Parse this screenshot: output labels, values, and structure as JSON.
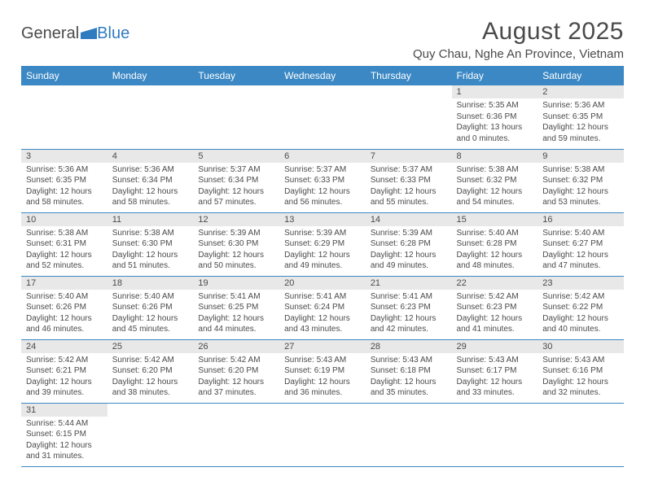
{
  "logo": {
    "text1": "General",
    "text2": "Blue"
  },
  "title": "August 2025",
  "location": "Quy Chau, Nghe An Province, Vietnam",
  "colors": {
    "header_bg": "#3b88c4",
    "header_text": "#ffffff",
    "daynum_bg": "#e8e8e8",
    "border": "#3b88c4",
    "text": "#4a4a4a",
    "logo_blue": "#2f7bbf",
    "background": "#ffffff"
  },
  "fonts": {
    "title_size": 30,
    "location_size": 15,
    "dayhead_size": 12,
    "body_size": 10
  },
  "day_headers": [
    "Sunday",
    "Monday",
    "Tuesday",
    "Wednesday",
    "Thursday",
    "Friday",
    "Saturday"
  ],
  "weeks": [
    [
      null,
      null,
      null,
      null,
      null,
      {
        "n": "1",
        "sr": "5:35 AM",
        "ss": "6:36 PM",
        "dl": "13 hours and 0 minutes."
      },
      {
        "n": "2",
        "sr": "5:36 AM",
        "ss": "6:35 PM",
        "dl": "12 hours and 59 minutes."
      }
    ],
    [
      {
        "n": "3",
        "sr": "5:36 AM",
        "ss": "6:35 PM",
        "dl": "12 hours and 58 minutes."
      },
      {
        "n": "4",
        "sr": "5:36 AM",
        "ss": "6:34 PM",
        "dl": "12 hours and 58 minutes."
      },
      {
        "n": "5",
        "sr": "5:37 AM",
        "ss": "6:34 PM",
        "dl": "12 hours and 57 minutes."
      },
      {
        "n": "6",
        "sr": "5:37 AM",
        "ss": "6:33 PM",
        "dl": "12 hours and 56 minutes."
      },
      {
        "n": "7",
        "sr": "5:37 AM",
        "ss": "6:33 PM",
        "dl": "12 hours and 55 minutes."
      },
      {
        "n": "8",
        "sr": "5:38 AM",
        "ss": "6:32 PM",
        "dl": "12 hours and 54 minutes."
      },
      {
        "n": "9",
        "sr": "5:38 AM",
        "ss": "6:32 PM",
        "dl": "12 hours and 53 minutes."
      }
    ],
    [
      {
        "n": "10",
        "sr": "5:38 AM",
        "ss": "6:31 PM",
        "dl": "12 hours and 52 minutes."
      },
      {
        "n": "11",
        "sr": "5:38 AM",
        "ss": "6:30 PM",
        "dl": "12 hours and 51 minutes."
      },
      {
        "n": "12",
        "sr": "5:39 AM",
        "ss": "6:30 PM",
        "dl": "12 hours and 50 minutes."
      },
      {
        "n": "13",
        "sr": "5:39 AM",
        "ss": "6:29 PM",
        "dl": "12 hours and 49 minutes."
      },
      {
        "n": "14",
        "sr": "5:39 AM",
        "ss": "6:28 PM",
        "dl": "12 hours and 49 minutes."
      },
      {
        "n": "15",
        "sr": "5:40 AM",
        "ss": "6:28 PM",
        "dl": "12 hours and 48 minutes."
      },
      {
        "n": "16",
        "sr": "5:40 AM",
        "ss": "6:27 PM",
        "dl": "12 hours and 47 minutes."
      }
    ],
    [
      {
        "n": "17",
        "sr": "5:40 AM",
        "ss": "6:26 PM",
        "dl": "12 hours and 46 minutes."
      },
      {
        "n": "18",
        "sr": "5:40 AM",
        "ss": "6:26 PM",
        "dl": "12 hours and 45 minutes."
      },
      {
        "n": "19",
        "sr": "5:41 AM",
        "ss": "6:25 PM",
        "dl": "12 hours and 44 minutes."
      },
      {
        "n": "20",
        "sr": "5:41 AM",
        "ss": "6:24 PM",
        "dl": "12 hours and 43 minutes."
      },
      {
        "n": "21",
        "sr": "5:41 AM",
        "ss": "6:23 PM",
        "dl": "12 hours and 42 minutes."
      },
      {
        "n": "22",
        "sr": "5:42 AM",
        "ss": "6:23 PM",
        "dl": "12 hours and 41 minutes."
      },
      {
        "n": "23",
        "sr": "5:42 AM",
        "ss": "6:22 PM",
        "dl": "12 hours and 40 minutes."
      }
    ],
    [
      {
        "n": "24",
        "sr": "5:42 AM",
        "ss": "6:21 PM",
        "dl": "12 hours and 39 minutes."
      },
      {
        "n": "25",
        "sr": "5:42 AM",
        "ss": "6:20 PM",
        "dl": "12 hours and 38 minutes."
      },
      {
        "n": "26",
        "sr": "5:42 AM",
        "ss": "6:20 PM",
        "dl": "12 hours and 37 minutes."
      },
      {
        "n": "27",
        "sr": "5:43 AM",
        "ss": "6:19 PM",
        "dl": "12 hours and 36 minutes."
      },
      {
        "n": "28",
        "sr": "5:43 AM",
        "ss": "6:18 PM",
        "dl": "12 hours and 35 minutes."
      },
      {
        "n": "29",
        "sr": "5:43 AM",
        "ss": "6:17 PM",
        "dl": "12 hours and 33 minutes."
      },
      {
        "n": "30",
        "sr": "5:43 AM",
        "ss": "6:16 PM",
        "dl": "12 hours and 32 minutes."
      }
    ],
    [
      {
        "n": "31",
        "sr": "5:44 AM",
        "ss": "6:15 PM",
        "dl": "12 hours and 31 minutes."
      },
      null,
      null,
      null,
      null,
      null,
      null
    ]
  ],
  "labels": {
    "sunrise": "Sunrise:",
    "sunset": "Sunset:",
    "daylight": "Daylight:"
  }
}
